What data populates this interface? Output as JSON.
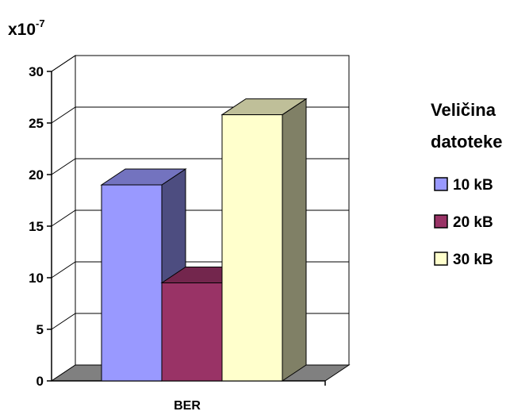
{
  "chart_data": {
    "type": "bar",
    "style": "3d",
    "categories": [
      "BER"
    ],
    "series": [
      {
        "name": "10 kB",
        "values": [
          19
        ],
        "color": "#9999ff",
        "side_color": "#4d4d80",
        "top_color": "#7373bf"
      },
      {
        "name": "20 kB",
        "values": [
          9.5
        ],
        "color": "#993366",
        "side_color": "#4d1a33",
        "top_color": "#73264d"
      },
      {
        "name": "30 kB",
        "values": [
          25.8
        ],
        "color": "#ffffcc",
        "side_color": "#808066",
        "top_color": "#bfbf99"
      }
    ],
    "ylim": [
      0,
      30
    ],
    "yticks": [
      "0",
      "5",
      "10",
      "15",
      "20",
      "25",
      "30"
    ],
    "scale_label": {
      "base": "x10",
      "exponent": "-7"
    },
    "legend": {
      "title_lines": [
        "Veličina",
        "datoteke"
      ],
      "position": "right"
    },
    "grid": true,
    "floor_color": "#808080",
    "wall_color": "#ffffff"
  }
}
